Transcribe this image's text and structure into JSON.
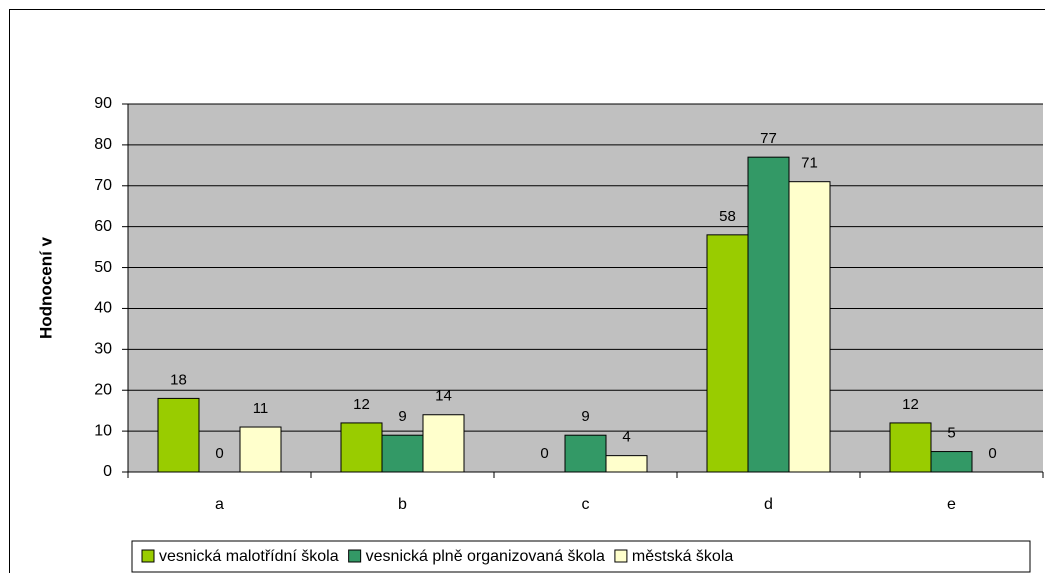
{
  "chart_data": {
    "type": "bar",
    "y_label": "Hodnocení v",
    "categories": [
      "a",
      "b",
      "c",
      "d",
      "e"
    ],
    "series": [
      {
        "name": "vesnická malotřídní škola",
        "color": "#99cc00",
        "values": [
          18,
          12,
          0,
          58,
          12
        ]
      },
      {
        "name": "vesnická plně organizovaná škola",
        "color": "#339966",
        "values": [
          0,
          9,
          9,
          77,
          5
        ]
      },
      {
        "name": "městská škola",
        "color": "#ffffcc",
        "values": [
          11,
          14,
          4,
          71,
          0
        ]
      }
    ],
    "ylim": [
      0,
      90
    ],
    "yticks": [
      0,
      10,
      20,
      30,
      40,
      50,
      60,
      70,
      80,
      90
    ],
    "grid": true,
    "plot_background": "#c0c0c0",
    "legend": "bottom"
  }
}
